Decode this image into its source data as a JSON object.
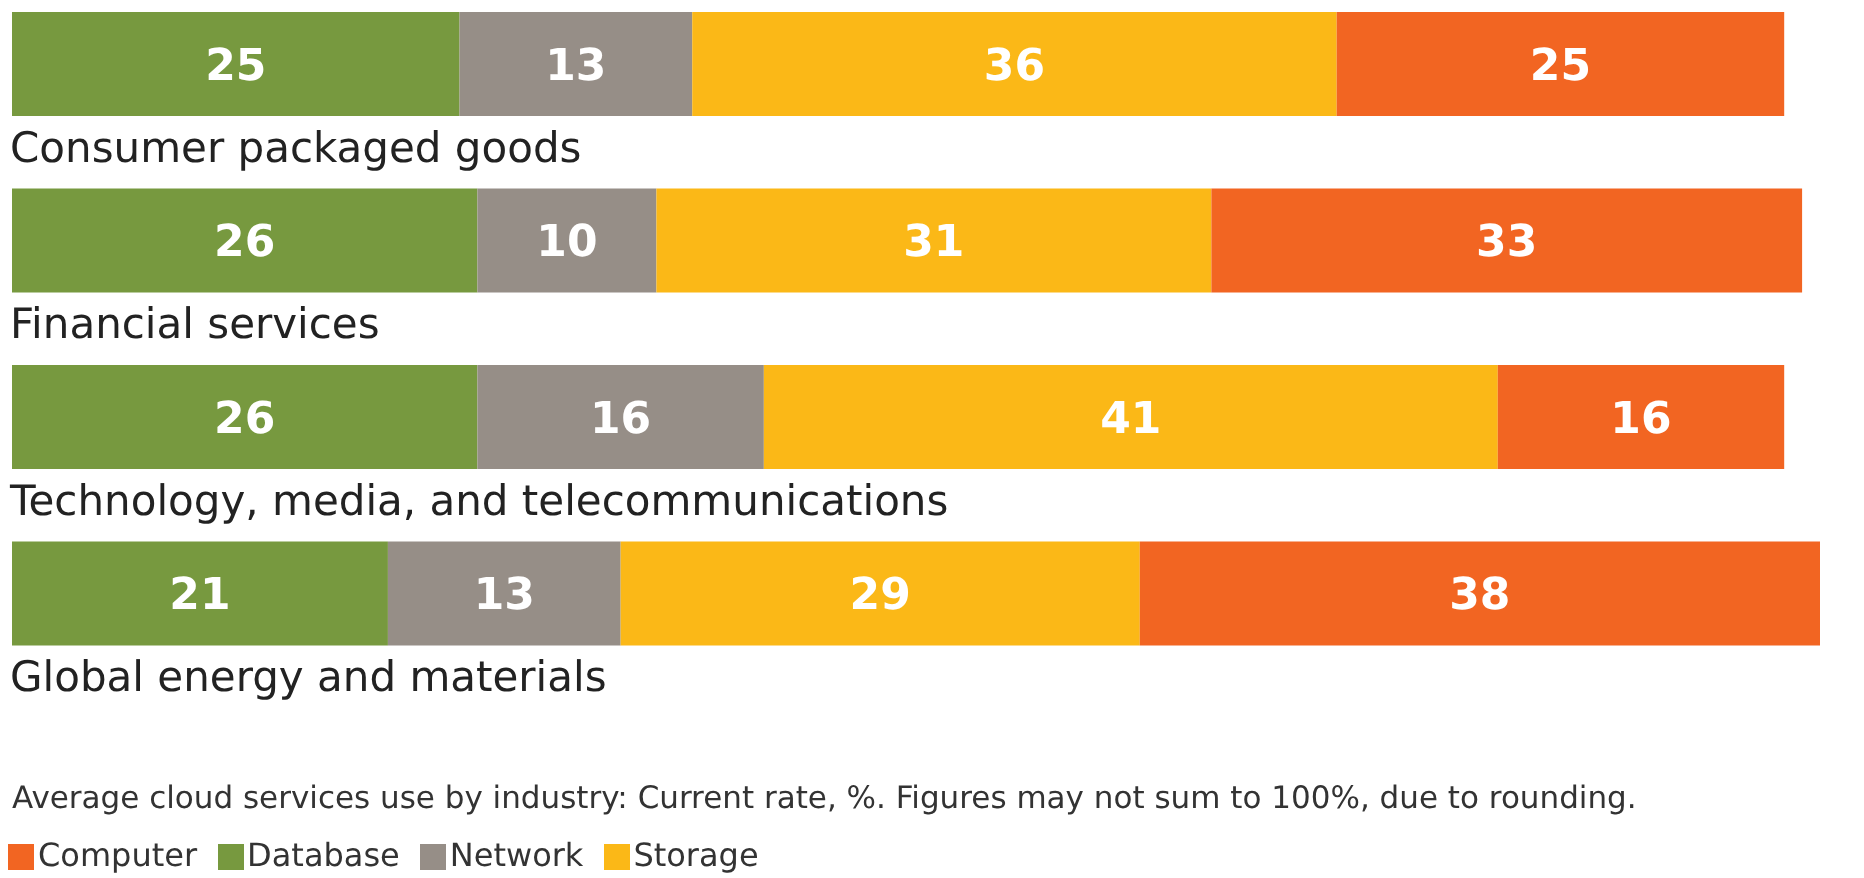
{
  "chart_data": {
    "type": "bar",
    "orientation": "horizontal",
    "stacked": true,
    "data_labels": true,
    "grid": false,
    "legend": "bottom left",
    "tick_labels": "y",
    "categories": [
      "Consumer packaged goods",
      "Financial services",
      "Technology, media, and telecommunications",
      "Global energy and materials"
    ],
    "series": [
      {
        "name": "Database",
        "color": "#77993f",
        "values": [
          25,
          26,
          26,
          21
        ]
      },
      {
        "name": "Network",
        "color": "#968e87",
        "values": [
          13,
          10,
          16,
          13
        ]
      },
      {
        "name": "Storage",
        "color": "#fbb817",
        "values": [
          36,
          31,
          41,
          29
        ]
      },
      {
        "name": "Computer",
        "color": "#f26522",
        "values": [
          25,
          33,
          16,
          38
        ]
      }
    ],
    "annotations": [
      "Average cloud services use by industry: Current rate, %. Figures may not sum to 100%, due to rounding."
    ]
  }
}
